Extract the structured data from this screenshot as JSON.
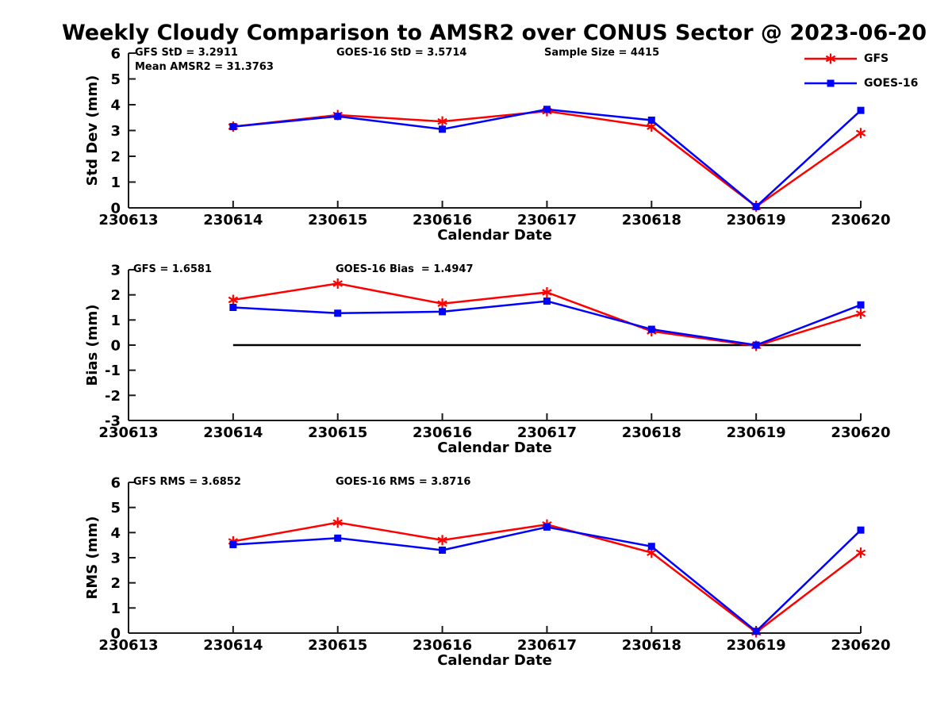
{
  "title": "Weekly Cloudy Comparison to AMSR2 over CONUS Sector @ 2023-06-20",
  "colors": {
    "gfs": "#ff0000",
    "goes16": "#0000ff",
    "axis": "#1a1a1a",
    "zero_line": "#000000",
    "background": "#ffffff",
    "text": "#000000"
  },
  "legend": {
    "position": "top-right",
    "items": [
      {
        "label": "GFS",
        "color": "#ff0000",
        "marker": "asterisk"
      },
      {
        "label": "GOES-16",
        "color": "#0000ff",
        "marker": "square"
      }
    ]
  },
  "chart_data": [
    {
      "id": "std-dev",
      "type": "line",
      "xlabel": "Calendar Date",
      "ylabel": "Std Dev (mm)",
      "ylim": [
        0,
        6
      ],
      "y_ticks": [
        0,
        1,
        2,
        3,
        4,
        5,
        6
      ],
      "grid": false,
      "x_tick_labels": [
        "230613",
        "230614",
        "230615",
        "230616",
        "230617",
        "230618",
        "230619",
        "230620"
      ],
      "x": [
        "230614",
        "230615",
        "230616",
        "230617",
        "230618",
        "230619",
        "230620"
      ],
      "series": [
        {
          "name": "GFS",
          "color": "#ff0000",
          "marker": "asterisk",
          "values": [
            3.15,
            3.6,
            3.35,
            3.75,
            3.15,
            0.05,
            2.9
          ]
        },
        {
          "name": "GOES-16",
          "color": "#0000ff",
          "marker": "square",
          "values": [
            3.15,
            3.55,
            3.05,
            3.82,
            3.4,
            0.05,
            3.78
          ]
        }
      ],
      "annotations": [
        "GFS StD = 3.2911",
        "GOES-16 StD = 3.5714",
        "Sample Size = 4415",
        "Mean AMSR2 = 31.3763"
      ],
      "zero_line": false
    },
    {
      "id": "bias",
      "type": "line",
      "xlabel": "Calendar Date",
      "ylabel": "Bias (mm)",
      "ylim": [
        -3,
        3
      ],
      "y_ticks": [
        -3,
        -2,
        -1,
        0,
        1,
        2,
        3
      ],
      "grid": false,
      "x_tick_labels": [
        "230613",
        "230614",
        "230615",
        "230616",
        "230617",
        "230618",
        "230619",
        "230620"
      ],
      "x": [
        "230614",
        "230615",
        "230616",
        "230617",
        "230618",
        "230619",
        "230620"
      ],
      "series": [
        {
          "name": "GFS",
          "color": "#ff0000",
          "marker": "asterisk",
          "values": [
            1.8,
            2.45,
            1.65,
            2.1,
            0.55,
            -0.03,
            1.25
          ]
        },
        {
          "name": "GOES-16",
          "color": "#0000ff",
          "marker": "square",
          "values": [
            1.5,
            1.27,
            1.33,
            1.75,
            0.63,
            0,
            1.6
          ]
        }
      ],
      "annotations": [
        "GFS = 1.6581",
        "GOES-16 Bias  = 1.4947"
      ],
      "zero_line": true
    },
    {
      "id": "rms",
      "type": "line",
      "xlabel": "Calendar Date",
      "ylabel": "RMS (mm)",
      "ylim": [
        0,
        6
      ],
      "y_ticks": [
        0,
        1,
        2,
        3,
        4,
        5,
        6
      ],
      "grid": false,
      "x_tick_labels": [
        "230613",
        "230614",
        "230615",
        "230616",
        "230617",
        "230618",
        "230619",
        "230620"
      ],
      "x": [
        "230614",
        "230615",
        "230616",
        "230617",
        "230618",
        "230619",
        "230620"
      ],
      "series": [
        {
          "name": "GFS",
          "color": "#ff0000",
          "marker": "asterisk",
          "values": [
            3.65,
            4.4,
            3.7,
            4.32,
            3.2,
            0.03,
            3.2
          ]
        },
        {
          "name": "GOES-16",
          "color": "#0000ff",
          "marker": "square",
          "values": [
            3.52,
            3.78,
            3.3,
            4.22,
            3.45,
            0.07,
            4.1
          ]
        }
      ],
      "annotations": [
        "GFS RMS = 3.6852",
        "GOES-16 RMS = 3.8716"
      ],
      "zero_line": false
    }
  ]
}
